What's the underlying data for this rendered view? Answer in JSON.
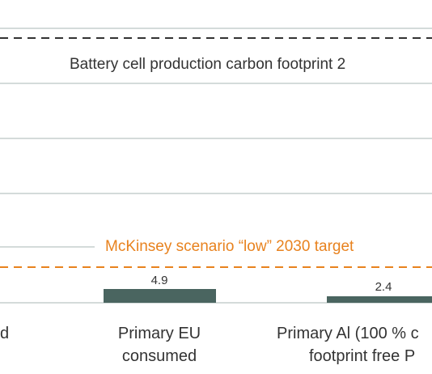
{
  "chart_data": {
    "type": "bar",
    "categories": [
      "d",
      "Primary EU consumed",
      "Primary Al (100 % c... footprint free P..."
    ],
    "category_lines": [
      [
        "d"
      ],
      [
        "Primary EU",
        "consumed"
      ],
      [
        "Primary Al (100 % c",
        "footprint free P"
      ]
    ],
    "values": [
      null,
      4.9,
      2.4
    ],
    "value_labels": [
      "",
      "4.9",
      "2.4"
    ],
    "reference_lines": [
      {
        "label": "Battery cell production carbon footprint 2",
        "color": "#333333",
        "style": "dashed"
      },
      {
        "label": "McKinsey scenario “low” 2030 target",
        "color": "#e8821e",
        "style": "dashed"
      }
    ],
    "grid": true,
    "colors": {
      "bar": "#4a6560",
      "grid": "#a9b7b4",
      "text": "#333333",
      "accent": "#e8821e"
    }
  }
}
